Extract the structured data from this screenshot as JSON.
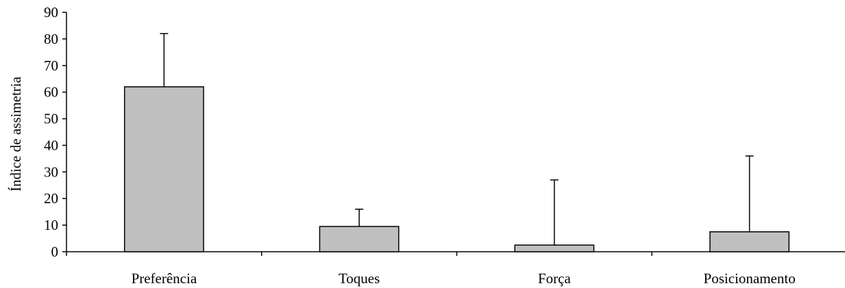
{
  "chart_data": {
    "type": "bar",
    "categories": [
      "Preferência",
      "Toques",
      "Força",
      "Posicionamento"
    ],
    "values": [
      62,
      9.5,
      2.5,
      7.5
    ],
    "error_upper": [
      82,
      16,
      27,
      36
    ],
    "ylabel": "Índice de assimetria",
    "ylim": [
      0,
      90
    ],
    "yticks": [
      0,
      10,
      20,
      30,
      40,
      50,
      60,
      70,
      80,
      90
    ],
    "grid": false,
    "legend": "none",
    "bar_color": "#c0c0c0"
  }
}
